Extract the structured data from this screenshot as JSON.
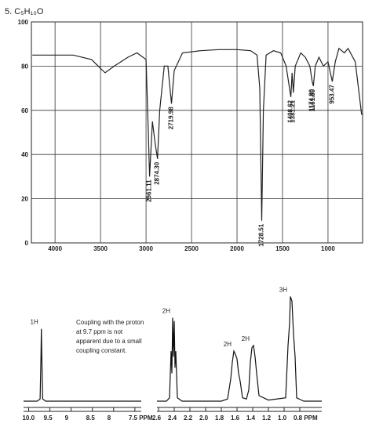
{
  "title": "5. C₅H₁₀O",
  "chart_data": [
    {
      "type": "line",
      "xlim": [
        4260,
        620
      ],
      "ylim": [
        0,
        100
      ],
      "xticks": [
        4000,
        3500,
        3000,
        2500,
        2000,
        1500,
        1000
      ],
      "yticks": [
        0,
        20,
        40,
        60,
        80,
        100
      ],
      "grid": true,
      "x": [
        4250,
        4000,
        3800,
        3600,
        3450,
        3350,
        3200,
        3100,
        3000,
        2975,
        2961,
        2930,
        2900,
        2874,
        2850,
        2800,
        2760,
        2720,
        2690,
        2600,
        2400,
        2200,
        2000,
        1850,
        1780,
        1750,
        1728,
        1710,
        1680,
        1600,
        1520,
        1460,
        1408,
        1395,
        1381,
        1360,
        1300,
        1250,
        1200,
        1174,
        1161,
        1140,
        1100,
        1050,
        1000,
        953,
        920,
        880,
        820,
        780,
        700,
        630
      ],
      "series": [
        {
          "color": "#222222",
          "values": [
            85,
            85,
            85,
            83,
            77,
            80,
            84,
            86,
            83,
            50,
            30,
            55,
            45,
            38,
            60,
            80,
            80,
            63,
            78,
            86,
            87,
            87.5,
            87.5,
            87,
            85,
            70,
            10,
            60,
            85,
            87,
            86,
            80,
            66,
            77,
            68,
            80,
            86,
            84,
            80,
            73,
            71,
            80,
            84,
            80,
            82,
            73,
            82,
            88,
            86,
            88,
            82,
            58
          ]
        }
      ],
      "peaks": [
        {
          "x": 2961.11,
          "label": "2961.11"
        },
        {
          "x": 2874.3,
          "label": "2874.30"
        },
        {
          "x": 2719.98,
          "label": "2719.98"
        },
        {
          "x": 1728.51,
          "label": "1728.51"
        },
        {
          "x": 1408.62,
          "label": "1408.62"
        },
        {
          "x": 1381.21,
          "label": "1381.21"
        },
        {
          "x": 1174.8,
          "label": "1174.80"
        },
        {
          "x": 1161.8,
          "label": "1161.80"
        },
        {
          "x": 953.47,
          "label": "953.47"
        }
      ]
    },
    {
      "type": "line",
      "xlim": [
        10.12,
        7.35
      ],
      "ylim": [
        0,
        100
      ],
      "xticks": [
        {
          "value": 10,
          "label": "10.0"
        },
        9.5,
        9,
        8.5,
        8,
        {
          "value": 7.5,
          "label": "7.5 PPM"
        }
      ],
      "x": [
        10.12,
        9.8,
        9.73,
        9.71,
        9.7,
        9.69,
        9.67,
        9.6,
        7.35
      ],
      "series": [
        {
          "color": "#111111",
          "values": [
            0,
            0,
            2,
            40,
            65,
            40,
            2,
            0,
            0
          ]
        }
      ],
      "annotations": [
        {
          "x": 9.7,
          "label": "1H"
        }
      ],
      "note": [
        "Coupling with the proton",
        "at 9.7 ppm is not",
        "apparent due to a small",
        "coupling constant."
      ]
    },
    {
      "type": "line",
      "xlim": [
        2.62,
        0.52
      ],
      "ylim": [
        0,
        100
      ],
      "xticks": [
        2.6,
        2.4,
        2.2,
        {
          "value": 2,
          "label": "2.0"
        },
        1.8,
        1.6,
        1.4,
        1.2,
        {
          "value": 1,
          "label": "1.0"
        },
        {
          "value": 0.8,
          "label": "0.8 PPM"
        }
      ],
      "x": [
        2.62,
        2.5,
        2.46,
        2.44,
        2.43,
        2.42,
        2.41,
        2.4,
        2.39,
        2.38,
        2.36,
        2.3,
        1.8,
        1.72,
        1.68,
        1.66,
        1.64,
        1.62,
        1.6,
        1.58,
        1.56,
        1.53,
        1.48,
        1.45,
        1.43,
        1.41,
        1.39,
        1.37,
        1.35,
        1.32,
        1.2,
        0.98,
        0.95,
        0.93,
        0.92,
        0.9,
        0.88,
        0.86,
        0.84,
        0.75,
        0.52
      ],
      "series": [
        {
          "color": "#111111",
          "values": [
            0,
            0,
            3,
            45,
            25,
            75,
            40,
            72,
            30,
            45,
            3,
            0,
            0,
            2,
            20,
            35,
            45,
            42,
            38,
            25,
            18,
            3,
            2,
            10,
            35,
            48,
            50,
            40,
            25,
            5,
            1,
            3,
            50,
            70,
            94,
            90,
            60,
            40,
            3,
            0,
            0
          ]
        }
      ],
      "annotations": [
        {
          "x": 2.41,
          "label": "2H"
        },
        {
          "x": 1.63,
          "label": "2H"
        },
        {
          "x": 1.4,
          "label": "2H"
        },
        {
          "x": 0.92,
          "label": "3H"
        }
      ]
    }
  ]
}
